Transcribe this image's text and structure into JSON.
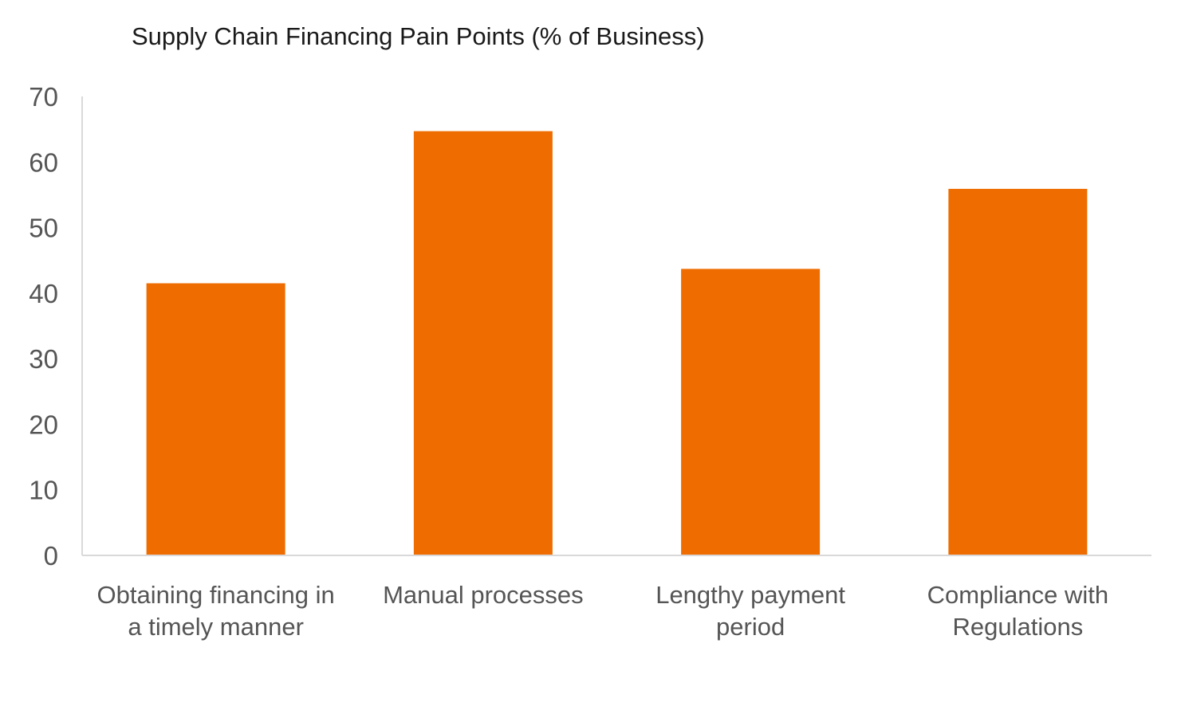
{
  "chart_data": {
    "type": "bar",
    "title": "Supply Chain Financing Pain Points (% of Business)",
    "xlabel": "",
    "ylabel": "",
    "categories": [
      [
        "Obtaining financing in",
        "a timely manner"
      ],
      [
        "Manual processes"
      ],
      [
        "Lengthy payment",
        "period"
      ],
      [
        "Compliance with",
        "Regulations"
      ]
    ],
    "values": [
      41.5,
      64.7,
      43.7,
      55.9
    ],
    "ylim": [
      0,
      70
    ],
    "yticks": [
      "0",
      "10",
      "20",
      "30",
      "40",
      "50",
      "60",
      "70"
    ],
    "bar_color": "#ef6c00",
    "axis_color": "#d9d9d9",
    "grid": false,
    "legend": "none"
  }
}
